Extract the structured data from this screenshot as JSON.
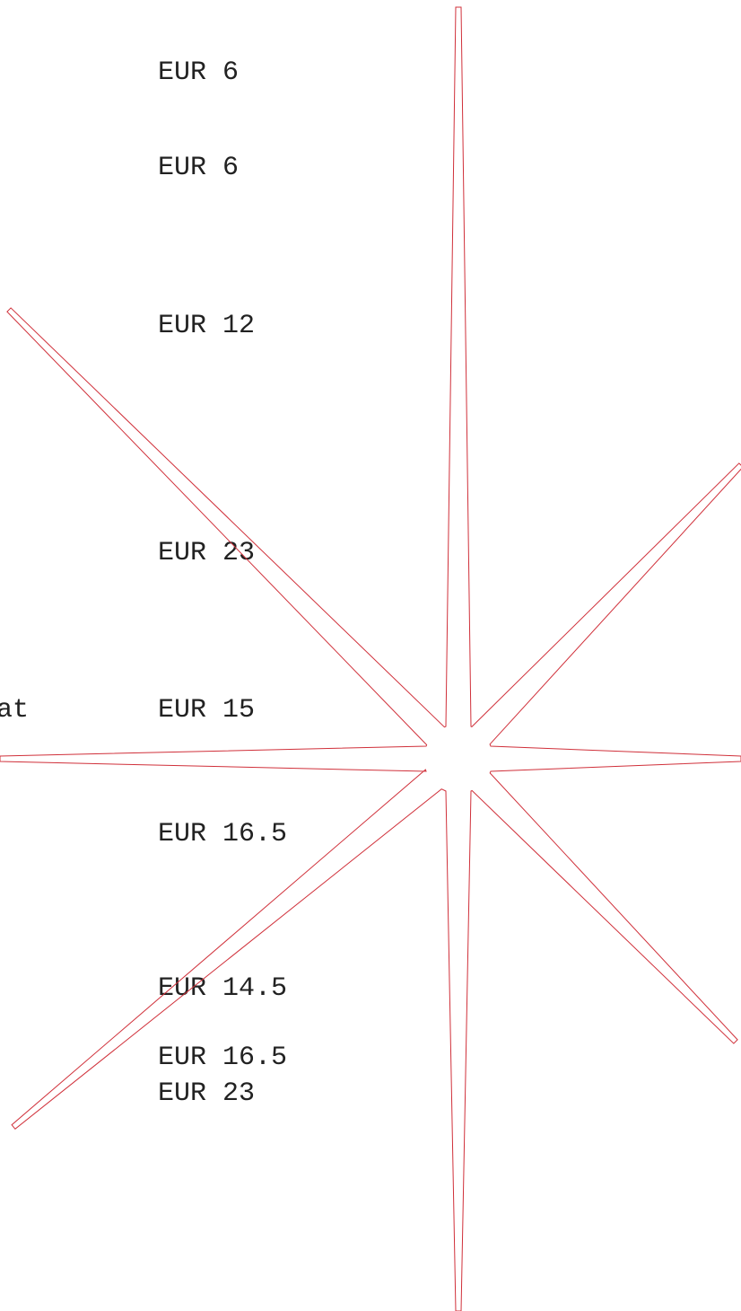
{
  "fragment": "at",
  "prices": [
    "EUR 6",
    "EUR 6",
    "EUR 12",
    "EUR 23",
    "EUR 15",
    "EUR 16.5",
    "EUR 14.5",
    "EUR 16.5",
    "EUR 23"
  ]
}
